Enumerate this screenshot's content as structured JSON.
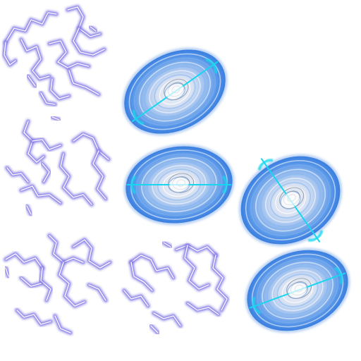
{
  "sprite_sheet": {
    "background": "#ffffff",
    "colors": {
      "bolt_glow": "#6a5fd8",
      "bolt_mid": "#8f86f0",
      "bolt_core": "#ffffff",
      "disc_outer": "#3b7fe0",
      "disc_mid": "#7fb3f2",
      "disc_inner": "#e8eef8",
      "disc_streak": "#18d6f0"
    },
    "frames": [
      {
        "name": "lightning-frame-1",
        "kind": "lightning"
      },
      {
        "name": "lightning-frame-2",
        "kind": "lightning"
      },
      {
        "name": "lightning-frame-3",
        "kind": "lightning"
      },
      {
        "name": "lightning-frame-4",
        "kind": "lightning"
      },
      {
        "name": "vortex-frame-1",
        "kind": "vortex",
        "streak_angle_deg": -35
      },
      {
        "name": "vortex-frame-2",
        "kind": "vortex",
        "streak_angle_deg": 0
      },
      {
        "name": "vortex-frame-3",
        "kind": "vortex",
        "streak_angle_deg": 55
      },
      {
        "name": "vortex-frame-4",
        "kind": "vortex",
        "streak_angle_deg": -20
      }
    ]
  }
}
